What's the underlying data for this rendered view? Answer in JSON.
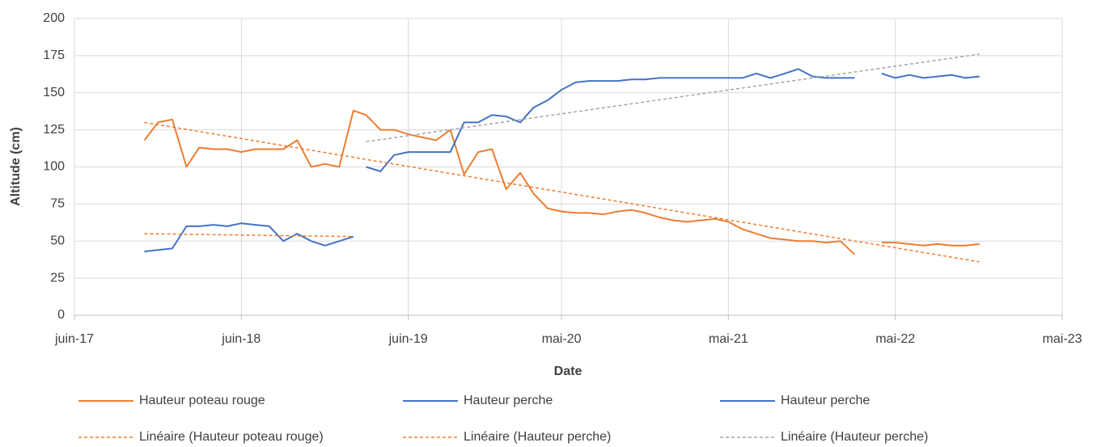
{
  "chart_data": {
    "type": "line",
    "ylabel": "Altitude (cm)",
    "xlabel": "Date",
    "x": [
      "2017-11",
      "2017-12",
      "2018-01",
      "2018-02",
      "2018-03",
      "2018-04",
      "2018-05",
      "2018-06",
      "2018-07",
      "2018-08",
      "2018-09",
      "2018-10",
      "2018-11",
      "2018-12",
      "2019-01",
      "2019-02",
      "2019-03",
      "2019-04",
      "2019-05",
      "2019-06",
      "2019-07",
      "2019-08",
      "2019-09",
      "2019-10",
      "2019-11",
      "2019-12",
      "2020-01",
      "2020-02",
      "2020-03",
      "2020-04",
      "2020-05",
      "2020-06",
      "2020-07",
      "2020-08",
      "2020-09",
      "2020-10",
      "2020-11",
      "2020-12",
      "2021-01",
      "2021-02",
      "2021-03",
      "2021-04",
      "2021-05",
      "2021-06",
      "2021-07",
      "2021-08",
      "2021-09",
      "2021-10",
      "2021-11",
      "2021-12",
      "2022-01",
      "2022-02",
      "2022-03",
      "2022-04",
      "2022-05",
      "2022-06",
      "2022-07",
      "2022-08",
      "2022-09",
      "2022-10",
      "2022-11"
    ],
    "series": [
      {
        "name": "Hauteur poteau rouge",
        "color": "#ED7D31",
        "dashed": false,
        "values": [
          118,
          130,
          132,
          100,
          113,
          112,
          112,
          110,
          112,
          112,
          112,
          118,
          100,
          102,
          100,
          138,
          135,
          125,
          125,
          122,
          120,
          118,
          125,
          95,
          110,
          112,
          85,
          96,
          82,
          72,
          70,
          69,
          69,
          68,
          70,
          71,
          69,
          66,
          64,
          63,
          64,
          65,
          63,
          58,
          55,
          52,
          51,
          50,
          50,
          49,
          50,
          41,
          null,
          49,
          49,
          48,
          47,
          48,
          47,
          47,
          48
        ]
      },
      {
        "name": "Hauteur perche",
        "color": "#4472C4",
        "dashed": false,
        "values": [
          43,
          44,
          45,
          60,
          60,
          61,
          60,
          62,
          61,
          60,
          50,
          55,
          50,
          47,
          50,
          53,
          null,
          null,
          null,
          null,
          null,
          null,
          null,
          null,
          null,
          null,
          null,
          null,
          null,
          null,
          null,
          null,
          null,
          null,
          null,
          null,
          null,
          null,
          null,
          null,
          null,
          null,
          null,
          null,
          null,
          null,
          null,
          null,
          null,
          null,
          null,
          null,
          null,
          null,
          null,
          null,
          null,
          null,
          null,
          null,
          null
        ]
      },
      {
        "name": "Hauteur perche",
        "color": "#4472C4",
        "dashed": false,
        "values": [
          null,
          null,
          null,
          null,
          null,
          null,
          null,
          null,
          null,
          null,
          null,
          null,
          null,
          null,
          null,
          null,
          100,
          97,
          108,
          110,
          110,
          110,
          110,
          130,
          130,
          135,
          134,
          130,
          140,
          145,
          152,
          157,
          158,
          158,
          158,
          159,
          159,
          160,
          160,
          160,
          160,
          160,
          160,
          160,
          163,
          160,
          163,
          166,
          161,
          160,
          160,
          160,
          null,
          163,
          160,
          162,
          160,
          161,
          162,
          160,
          161
        ]
      },
      {
        "name": "Linéaire (Hauteur poteau rouge)",
        "color": "#ED7D31",
        "dashed": true,
        "x": [
          "2017-11",
          "2022-11"
        ],
        "values": [
          130,
          36
        ]
      },
      {
        "name": "Linéaire (Hauteur perche)",
        "color": "#ED7D31",
        "dashed": true,
        "x": [
          "2017-11",
          "2019-02"
        ],
        "values": [
          55,
          53
        ]
      },
      {
        "name": "Linéaire (Hauteur perche)",
        "color": "#A5A5A5",
        "dashed": true,
        "x": [
          "2019-03",
          "2022-11"
        ],
        "values": [
          117,
          176
        ]
      }
    ],
    "xlim": [
      "2017-06",
      "2023-05"
    ],
    "xticks": [
      {
        "value": "2017-06",
        "label": "juin-17"
      },
      {
        "value": "2018-06",
        "label": "juin-18"
      },
      {
        "value": "2019-06",
        "label": "juin-19"
      },
      {
        "value": "2020-05",
        "label": "mai-20"
      },
      {
        "value": "2021-05",
        "label": "mai-21"
      },
      {
        "value": "2022-05",
        "label": "mai-22"
      },
      {
        "value": "2023-05",
        "label": "mai-23"
      }
    ],
    "ylim": [
      0,
      200
    ],
    "yticks": [
      0,
      25,
      50,
      75,
      100,
      125,
      150,
      175,
      200
    ],
    "grid": true,
    "legend": "bottom"
  }
}
